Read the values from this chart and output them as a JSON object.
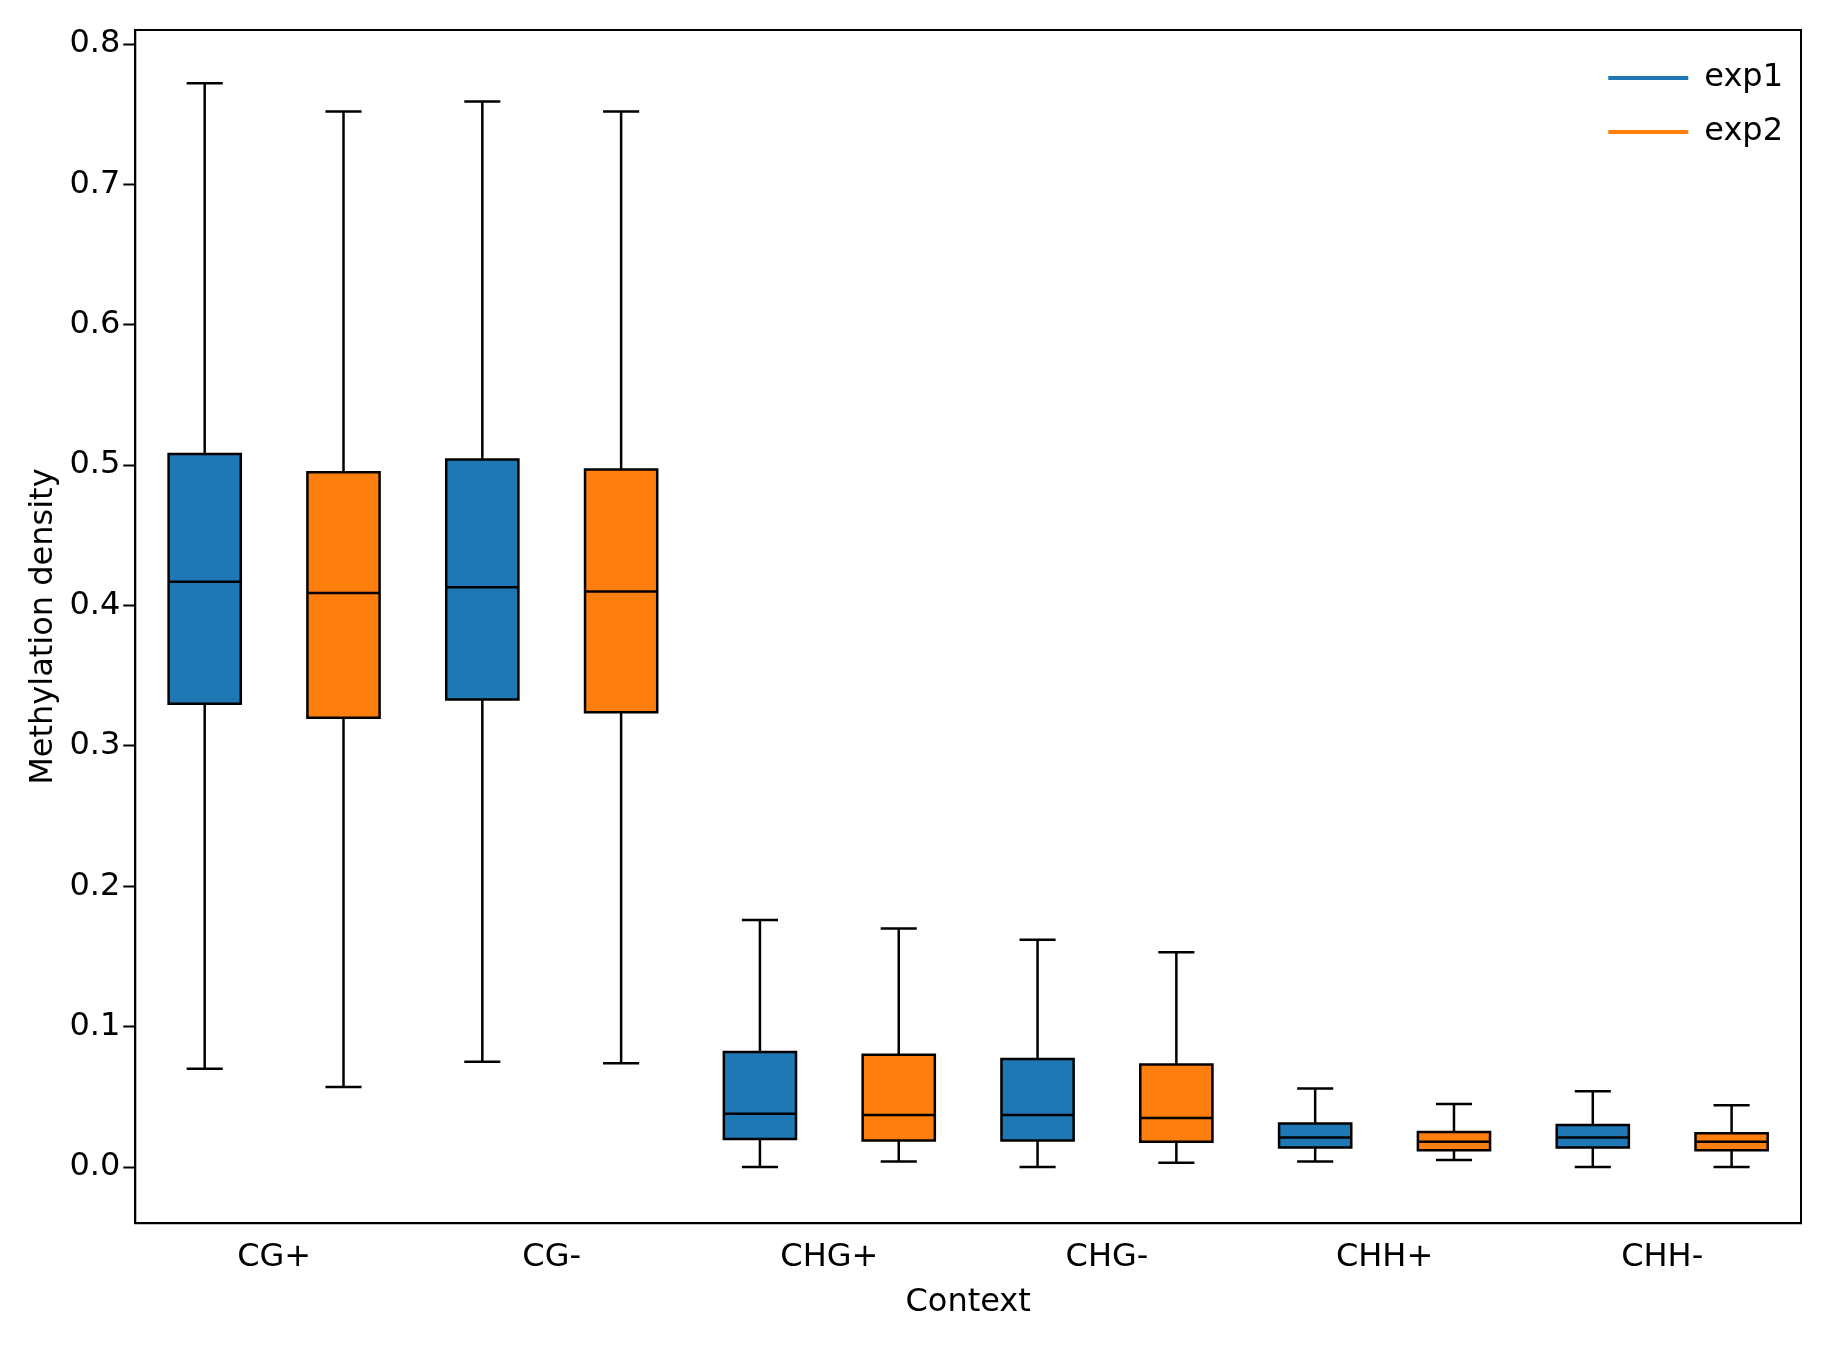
{
  "chart_data": {
    "type": "box",
    "xlabel": "Context",
    "ylabel": "Methylation density",
    "categories": [
      "CG+",
      "CG-",
      "CHG+",
      "CHG-",
      "CHH+",
      "CHH-"
    ],
    "ylim": [
      -0.04,
      0.81
    ],
    "yticks": [
      {
        "value": 0,
        "label": "0.0"
      },
      0.1,
      0.2,
      0.3,
      0.4,
      0.5,
      0.6,
      0.7,
      0.8
    ],
    "grid": false,
    "legend": "top right",
    "series": [
      {
        "name": "exp1",
        "color": "#1f77b4",
        "boxes": [
          {
            "low": 0.07,
            "q1": 0.33,
            "median": 0.417,
            "q3": 0.508,
            "high": 0.772
          },
          {
            "low": 0.075,
            "q1": 0.333,
            "median": 0.413,
            "q3": 0.504,
            "high": 0.759
          },
          {
            "low": 0.0,
            "q1": 0.02,
            "median": 0.038,
            "q3": 0.082,
            "high": 0.176
          },
          {
            "low": 0.0,
            "q1": 0.019,
            "median": 0.037,
            "q3": 0.077,
            "high": 0.162
          },
          {
            "low": 0.004,
            "q1": 0.014,
            "median": 0.021,
            "q3": 0.031,
            "high": 0.056
          },
          {
            "low": 0.0,
            "q1": 0.014,
            "median": 0.021,
            "q3": 0.03,
            "high": 0.054
          }
        ]
      },
      {
        "name": "exp2",
        "color": "#ff7f0e",
        "boxes": [
          {
            "low": 0.057,
            "q1": 0.32,
            "median": 0.409,
            "q3": 0.495,
            "high": 0.752
          },
          {
            "low": 0.074,
            "q1": 0.324,
            "median": 0.41,
            "q3": 0.497,
            "high": 0.752
          },
          {
            "low": 0.004,
            "q1": 0.019,
            "median": 0.037,
            "q3": 0.08,
            "high": 0.17
          },
          {
            "low": 0.003,
            "q1": 0.018,
            "median": 0.035,
            "q3": 0.073,
            "high": 0.153
          },
          {
            "low": 0.005,
            "q1": 0.012,
            "median": 0.018,
            "q3": 0.025,
            "high": 0.045
          },
          {
            "low": 0.0,
            "q1": 0.012,
            "median": 0.018,
            "q3": 0.024,
            "high": 0.044
          }
        ]
      }
    ]
  }
}
